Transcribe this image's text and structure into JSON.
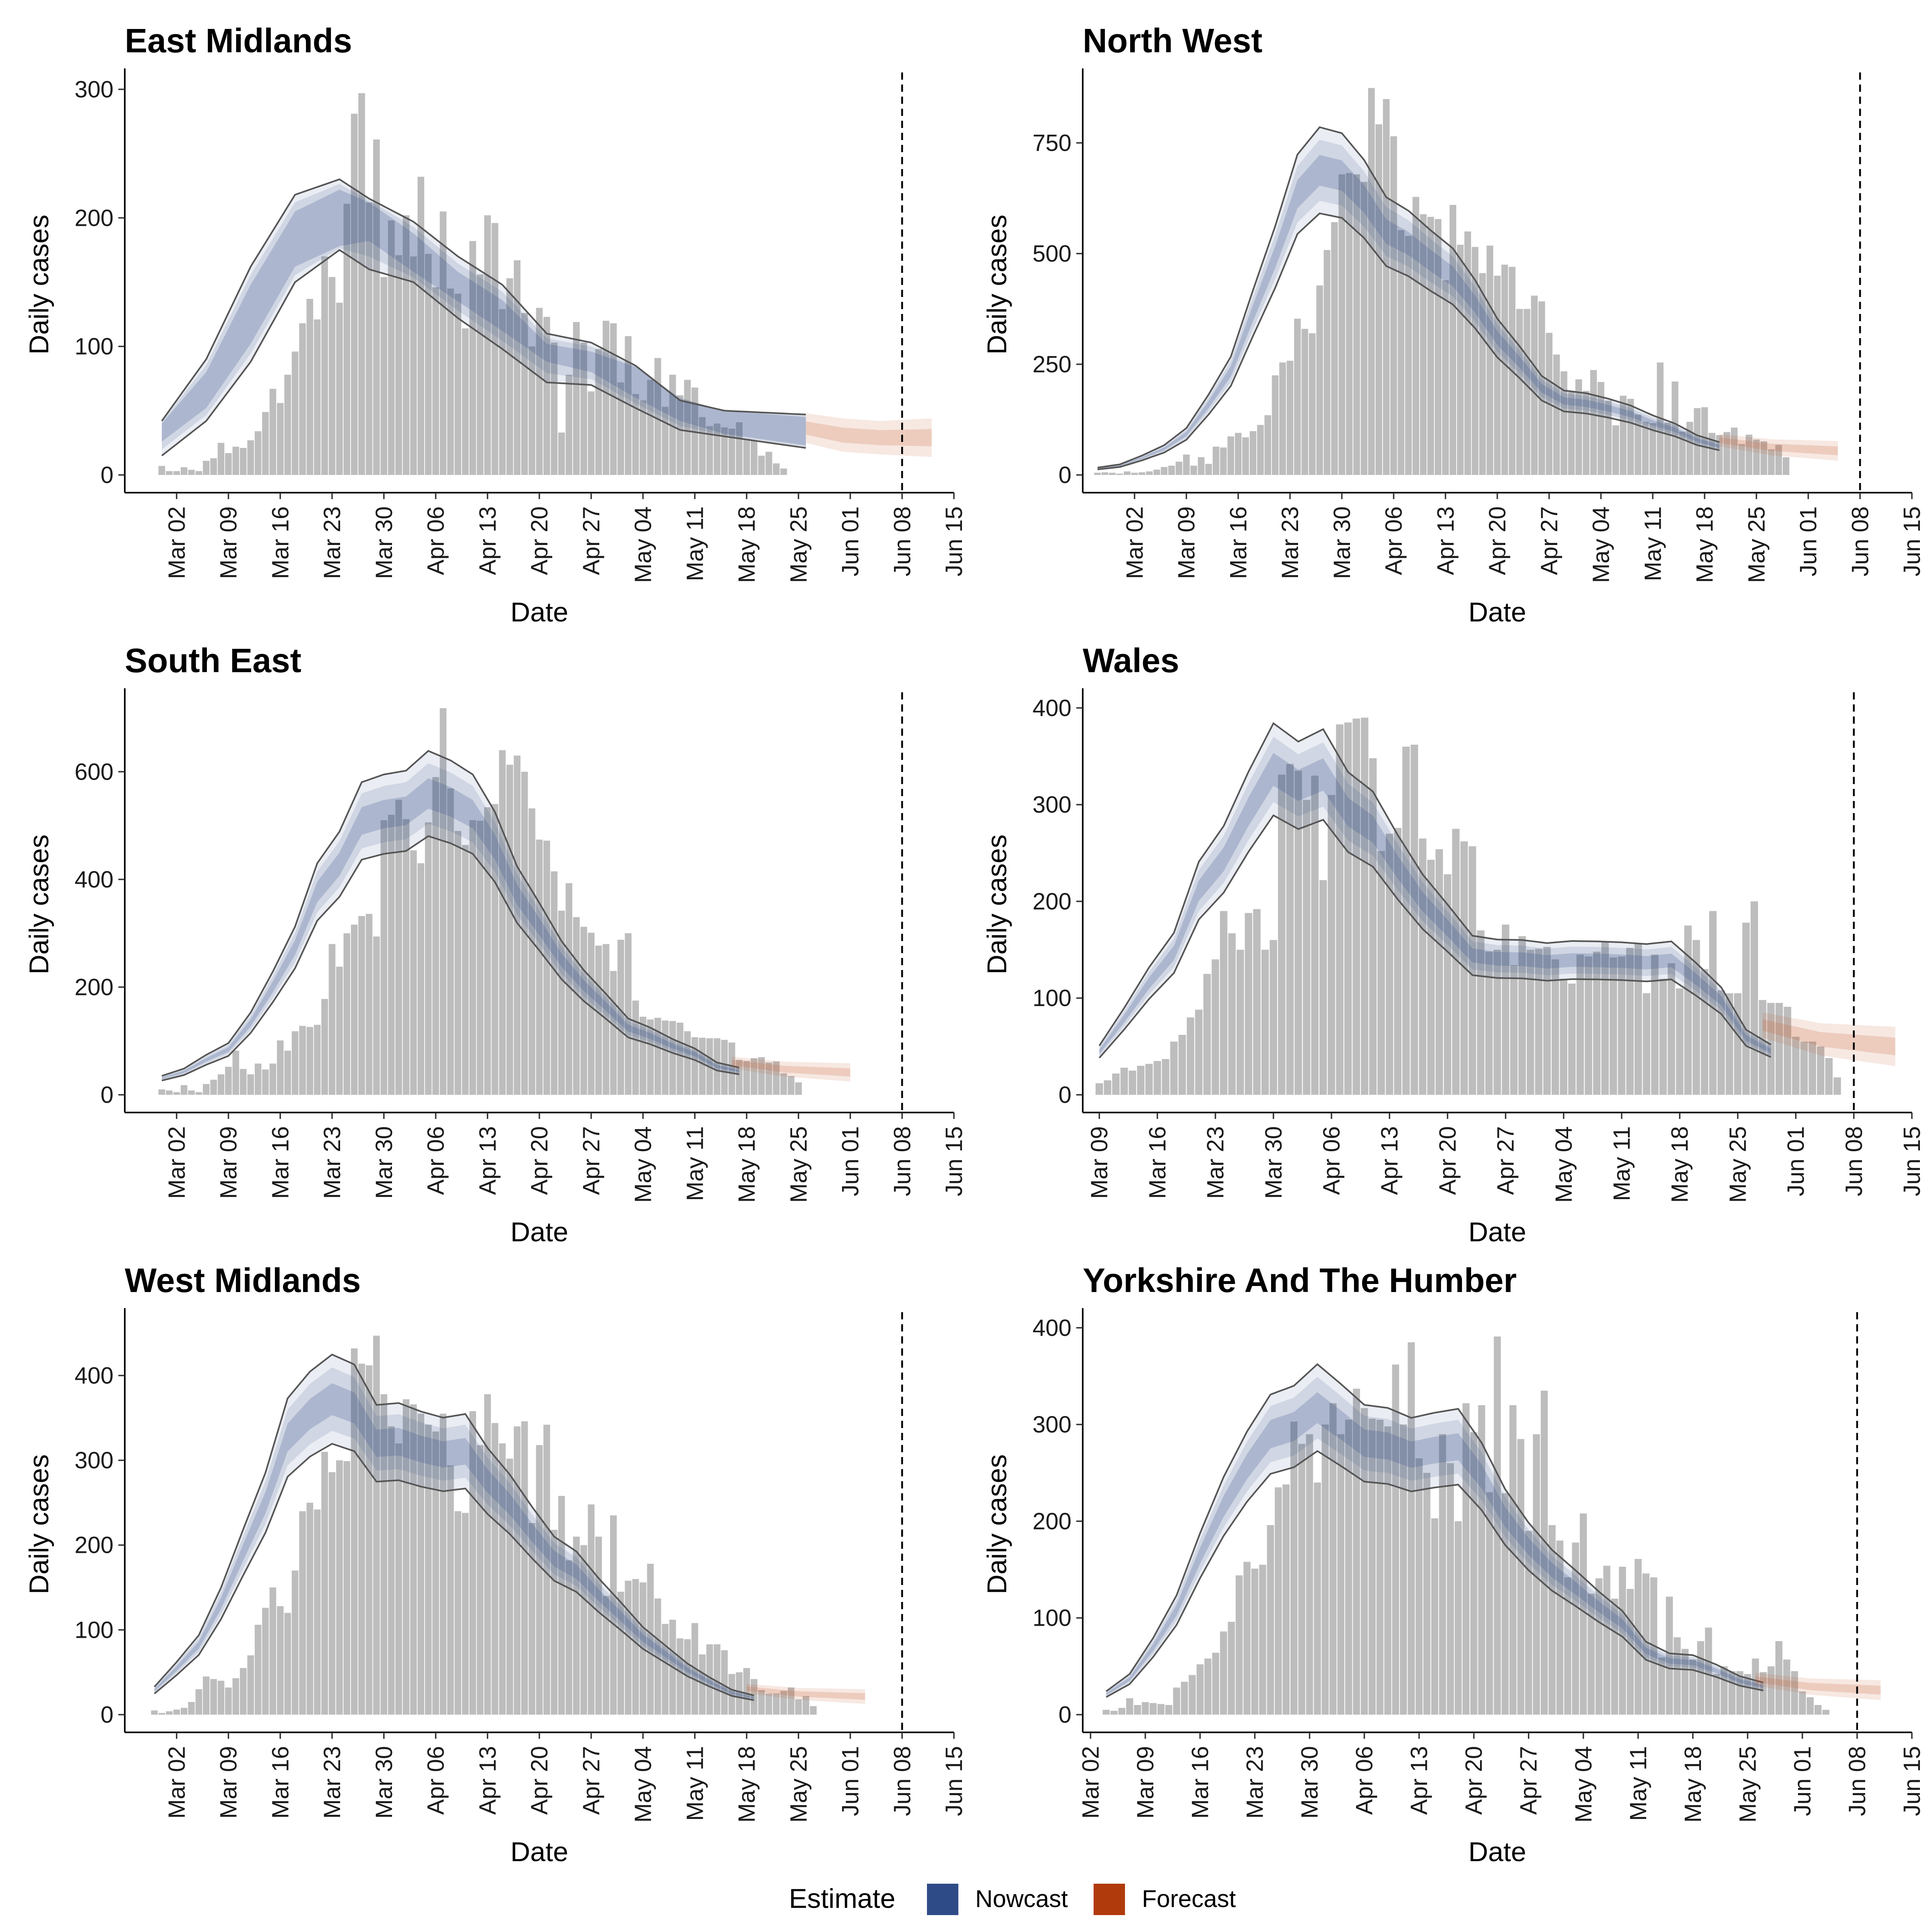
{
  "chart_data": {
    "type": "bar",
    "grid": false,
    "xlabel": "Date",
    "ylabel": "Daily cases",
    "legend": {
      "title": "Estimate",
      "position": "bottom",
      "entries": [
        {
          "label": "Nowcast",
          "color": "#2f4b87"
        },
        {
          "label": "Forecast",
          "color": "#b03a0c"
        }
      ]
    },
    "colors": {
      "cases_bar": "#bdbdbd",
      "nowcast_band": "#2f4b87",
      "forecast_band": "#c65f32",
      "ci_line": "#555555",
      "forecast_marker": "#000000"
    },
    "date_ticks": [
      "2020-03-02",
      "2020-03-09",
      "2020-03-16",
      "2020-03-23",
      "2020-03-30",
      "2020-04-06",
      "2020-04-13",
      "2020-04-20",
      "2020-04-27",
      "2020-05-04",
      "2020-05-11",
      "2020-05-18",
      "2020-05-25",
      "2020-06-01",
      "2020-06-08",
      "2020-06-15"
    ],
    "date_tick_labels": [
      "Mar 02",
      "Mar 09",
      "Mar 16",
      "Mar 23",
      "Mar 30",
      "Apr 06",
      "Apr 13",
      "Apr 20",
      "Apr 27",
      "May 04",
      "May 11",
      "May 18",
      "May 25",
      "Jun 01",
      "Jun 08",
      "Jun 15"
    ],
    "panels": [
      {
        "title": "East Midlands",
        "ylim": [
          0,
          310
        ],
        "yticks": [
          0,
          100,
          200,
          300
        ],
        "xlim": [
          "2020-02-24",
          "2020-06-15"
        ],
        "forecast_date": "2020-06-08",
        "cases_start": "2020-02-29",
        "cases": [
          7,
          3,
          3,
          6,
          4,
          3,
          11,
          13,
          25,
          17,
          22,
          21,
          27,
          34,
          49,
          67,
          56,
          78,
          96,
          118,
          137,
          121,
          170,
          154,
          134,
          211,
          281,
          297,
          212,
          261,
          154,
          198,
          171,
          202,
          170,
          232,
          172,
          146,
          205,
          145,
          141,
          114,
          182,
          156,
          202,
          196,
          129,
          153,
          167,
          126,
          100,
          130,
          123,
          103,
          33,
          78,
          119,
          103,
          65,
          98,
          120,
          118,
          72,
          108,
          63,
          58,
          74,
          91,
          53,
          78,
          62,
          74,
          68,
          45,
          38,
          40,
          37,
          36,
          41,
          28,
          27,
          15,
          18,
          9,
          5,
          0
        ],
        "nowcast": {
          "start": "2020-02-29",
          "knots": [
            [
              0,
              26,
              40
            ],
            [
              6,
              52,
              80
            ],
            [
              12,
              102,
              148
            ],
            [
              18,
              162,
              205
            ],
            [
              24,
              178,
              222
            ],
            [
              28,
              182,
              212
            ],
            [
              34,
              158,
              188
            ],
            [
              40,
              135,
              158
            ],
            [
              46,
              112,
              136
            ],
            [
              52,
              88,
              102
            ],
            [
              58,
              80,
              96
            ],
            [
              64,
              60,
              84
            ],
            [
              70,
              42,
              60
            ],
            [
              76,
              32,
              50
            ],
            [
              87,
              23,
              45
            ]
          ],
          "ci": [
            [
              0,
              15,
              42
            ],
            [
              6,
              42,
              90
            ],
            [
              12,
              88,
              162
            ],
            [
              18,
              150,
              218
            ],
            [
              24,
              175,
              230
            ],
            [
              28,
              160,
              215
            ],
            [
              34,
              150,
              197
            ],
            [
              40,
              122,
              170
            ],
            [
              46,
              98,
              148
            ],
            [
              52,
              72,
              110
            ],
            [
              58,
              70,
              103
            ],
            [
              64,
              52,
              85
            ],
            [
              70,
              35,
              58
            ],
            [
              76,
              30,
              50
            ],
            [
              87,
              21,
              47
            ]
          ]
        },
        "forecast": {
          "start": "2020-05-26",
          "knots": [
            [
              0,
              25,
              48
            ],
            [
              5,
              18,
              44
            ],
            [
              10,
              16,
              42
            ],
            [
              17,
              14,
              44
            ]
          ]
        }
      },
      {
        "title": "North West",
        "ylim": [
          0,
          900
        ],
        "yticks": [
          0,
          250,
          500,
          750
        ],
        "xlim": [
          "2020-02-24",
          "2020-06-15"
        ],
        "forecast_date": "2020-06-08",
        "cases_start": "2020-02-26",
        "cases": [
          5,
          6,
          5,
          3,
          8,
          5,
          6,
          8,
          12,
          18,
          21,
          30,
          46,
          21,
          40,
          25,
          64,
          62,
          87,
          95,
          85,
          99,
          113,
          135,
          225,
          254,
          258,
          353,
          330,
          320,
          428,
          508,
          571,
          679,
          682,
          679,
          662,
          874,
          792,
          849,
          765,
          553,
          540,
          628,
          589,
          583,
          578,
          440,
          610,
          520,
          550,
          515,
          456,
          518,
          450,
          475,
          470,
          375,
          375,
          405,
          392,
          321,
          272,
          234,
          187,
          216,
          190,
          237,
          210,
          168,
          112,
          179,
          172,
          136,
          120,
          117,
          254,
          118,
          211,
          98,
          120,
          151,
          153,
          95,
          90,
          97,
          107,
          70,
          91,
          80,
          76,
          58,
          68,
          40,
          0
        ]
      },
      {
        "title": "South East",
        "ylim": [
          0,
          740
        ],
        "yticks": [
          0,
          200,
          400,
          600
        ],
        "xlim": [
          "2020-02-24",
          "2020-06-15"
        ],
        "forecast_date": "2020-06-08",
        "cases_start": "2020-02-29",
        "cases": [
          10,
          8,
          5,
          18,
          8,
          5,
          20,
          28,
          38,
          52,
          82,
          48,
          38,
          58,
          47,
          58,
          101,
          82,
          118,
          128,
          126,
          130,
          178,
          280,
          238,
          300,
          316,
          332,
          336,
          294,
          510,
          520,
          548,
          512,
          454,
          430,
          506,
          590,
          718,
          569,
          490,
          464,
          510,
          509,
          534,
          540,
          640,
          613,
          630,
          600,
          532,
          474,
          472,
          415,
          342,
          393,
          330,
          312,
          301,
          277,
          280,
          230,
          288,
          300,
          175,
          145,
          140,
          143,
          138,
          137,
          134,
          118,
          107,
          106,
          105,
          105,
          102,
          97,
          65,
          63,
          68,
          70,
          60,
          62,
          40,
          35,
          23,
          0
        ]
      },
      {
        "title": "Wales",
        "ylim": [
          0,
          412
        ],
        "yticks": [
          0,
          100,
          200,
          300,
          400
        ],
        "xlim": [
          "2020-03-07",
          "2020-06-15"
        ],
        "forecast_date": "2020-06-08",
        "cases_start": "2020-03-09",
        "cases": [
          12,
          15,
          22,
          28,
          25,
          30,
          32,
          35,
          37,
          55,
          62,
          80,
          88,
          125,
          140,
          190,
          167,
          150,
          188,
          192,
          150,
          160,
          331,
          342,
          335,
          305,
          330,
          222,
          310,
          383,
          385,
          389,
          390,
          348,
          252,
          270,
          276,
          360,
          362,
          265,
          243,
          254,
          228,
          275,
          262,
          257,
          170,
          148,
          150,
          176,
          134,
          164,
          150,
          151,
          153,
          140,
          120,
          115,
          145,
          143,
          148,
          158,
          142,
          143,
          152,
          156,
          105,
          145,
          120,
          136,
          110,
          175,
          160,
          130,
          190,
          108,
          105,
          105,
          178,
          200,
          98,
          95,
          95,
          91,
          60,
          55,
          55,
          50,
          38,
          18,
          0
        ]
      },
      {
        "title": "West Midlands",
        "ylim": [
          0,
          470
        ],
        "yticks": [
          0,
          100,
          200,
          300,
          400
        ],
        "xlim": [
          "2020-02-24",
          "2020-06-15"
        ],
        "forecast_date": "2020-06-08",
        "cases_start": "2020-02-28",
        "cases": [
          5,
          2,
          4,
          6,
          8,
          15,
          30,
          45,
          42,
          40,
          32,
          43,
          55,
          70,
          106,
          126,
          150,
          128,
          120,
          170,
          240,
          250,
          242,
          310,
          286,
          300,
          299,
          432,
          414,
          412,
          447,
          378,
          340,
          320,
          372,
          366,
          355,
          342,
          334,
          355,
          294,
          240,
          238,
          358,
          318,
          378,
          344,
          320,
          302,
          340,
          346,
          226,
          318,
          342,
          218,
          258,
          182,
          210,
          200,
          248,
          210,
          140,
          235,
          145,
          158,
          160,
          156,
          178,
          137,
          107,
          112,
          90,
          89,
          108,
          71,
          83,
          83,
          76,
          48,
          50,
          55,
          42,
          29,
          25,
          25,
          28,
          32,
          18,
          22,
          10,
          0
        ]
      },
      {
        "title": "Yorkshire And The Humber",
        "ylim": [
          0,
          412
        ],
        "yticks": [
          0,
          100,
          200,
          300,
          400
        ],
        "xlim": [
          "2020-03-01",
          "2020-06-15"
        ],
        "forecast_date": "2020-06-08",
        "cases_start": "2020-03-04",
        "cases": [
          5,
          4,
          7,
          17,
          10,
          13,
          12,
          11,
          10,
          28,
          34,
          41,
          52,
          58,
          64,
          86,
          96,
          144,
          158,
          151,
          155,
          196,
          235,
          238,
          303,
          280,
          290,
          240,
          300,
          322,
          290,
          305,
          337,
          317,
          306,
          305,
          298,
          362,
          300,
          385,
          265,
          250,
          203,
          290,
          260,
          200,
          322,
          292,
          320,
          230,
          391,
          229,
          320,
          285,
          190,
          290,
          335,
          196,
          180,
          142,
          178,
          208,
          125,
          141,
          154,
          120,
          153,
          130,
          161,
          146,
          142,
          59,
          122,
          80,
          68,
          57,
          76,
          90,
          42,
          50,
          45,
          45,
          42,
          58,
          44,
          50,
          76,
          57,
          45,
          24,
          18,
          10,
          5,
          0
        ]
      }
    ]
  }
}
